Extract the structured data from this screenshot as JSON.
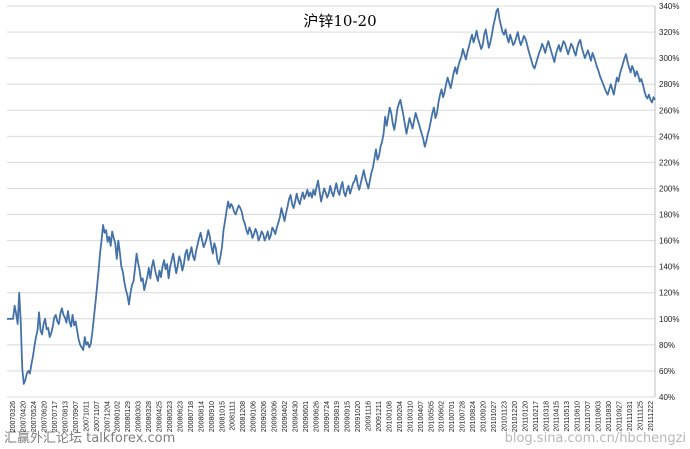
{
  "chart_data": {
    "type": "line",
    "title": "沪锌10-20",
    "xlabel": "",
    "ylabel": "",
    "yticks": [
      "40%",
      "60%",
      "80%",
      "100%",
      "120%",
      "140%",
      "160%",
      "180%",
      "200%",
      "220%",
      "240%",
      "260%",
      "280%",
      "300%",
      "320%",
      "340%"
    ],
    "ylim": [
      40,
      340
    ],
    "y_unit": "%",
    "grid": "horizontal",
    "legend": "none",
    "line_color": "#4472A8",
    "x_tick_labels": [
      "20070326",
      "20070420",
      "20070524",
      "20070620",
      "20070717",
      "20070813",
      "20070907",
      "20071011",
      "20071107",
      "20071204",
      "20080102",
      "20080129",
      "20080303",
      "20080328",
      "20080425",
      "20080523",
      "20080623",
      "20080718",
      "20080814",
      "20080910",
      "20081015",
      "20081111",
      "20081208",
      "20090106",
      "20090206",
      "20090306",
      "20090402",
      "20090430",
      "20090601",
      "20090626",
      "20090724",
      "20090819",
      "20090915",
      "20091020",
      "20091116",
      "20091211",
      "20100108",
      "20100204",
      "20100310",
      "20100407",
      "20100505",
      "20100602",
      "20100701",
      "20100728",
      "20100824",
      "20100920",
      "20101027",
      "20101123",
      "20101220",
      "20110120",
      "20110217",
      "20110318",
      "20110415",
      "20110513",
      "20110610",
      "20110707",
      "20110803",
      "20110830",
      "20110927",
      "20111031",
      "20111125",
      "20111222"
    ],
    "series": [
      {
        "values": [
          100,
          100,
          100,
          100,
          100,
          110,
          104,
          96,
          120,
          98,
          62,
          50,
          53,
          58,
          60,
          58,
          65,
          71,
          79,
          86,
          91,
          105,
          91,
          88,
          96,
          100,
          92,
          93,
          86,
          89,
          94,
          101,
          103,
          98,
          96,
          104,
          108,
          103,
          101,
          97,
          106,
          98,
          94,
          103,
          95,
          98,
          91,
          84,
          80,
          78,
          76,
          86,
          80,
          82,
          78,
          81,
          90,
          101,
          112,
          124,
          136,
          150,
          160,
          172,
          166,
          168,
          159,
          163,
          156,
          167,
          162,
          158,
          146,
          160,
          151,
          140,
          136,
          128,
          122,
          118,
          111,
          120,
          126,
          129,
          139,
          150,
          143,
          137,
          129,
          131,
          122,
          127,
          132,
          139,
          131,
          140,
          145,
          138,
          133,
          129,
          137,
          132,
          140,
          145,
          138,
          142,
          131,
          140,
          145,
          150,
          142,
          135,
          141,
          148,
          144,
          137,
          142,
          150,
          153,
          145,
          150,
          155,
          148,
          145,
          152,
          157,
          162,
          166,
          160,
          155,
          158,
          162,
          168,
          163,
          156,
          150,
          158,
          154,
          145,
          142,
          148,
          155,
          168,
          175,
          183,
          190,
          185,
          188,
          186,
          182,
          180,
          184,
          187,
          185,
          182,
          176,
          173,
          168,
          165,
          170,
          167,
          162,
          165,
          169,
          166,
          160,
          163,
          167,
          165,
          160,
          163,
          167,
          161,
          164,
          170,
          168,
          165,
          170,
          174,
          178,
          185,
          180,
          175,
          181,
          186,
          192,
          195,
          188,
          185,
          190,
          196,
          191,
          188,
          193,
          197,
          192,
          195,
          199,
          194,
          197,
          193,
          199,
          195,
          201,
          206,
          198,
          190,
          195,
          200,
          197,
          193,
          196,
          202,
          197,
          194,
          199,
          204,
          198,
          195,
          201,
          205,
          197,
          194,
          199,
          202,
          196,
          200,
          204,
          206,
          210,
          203,
          199,
          204,
          209,
          214,
          208,
          204,
          200,
          206,
          212,
          216,
          223,
          230,
          222,
          225,
          232,
          236,
          242,
          255,
          248,
          255,
          262,
          258,
          250,
          245,
          252,
          261,
          265,
          268,
          262,
          256,
          249,
          242,
          248,
          254,
          250,
          246,
          252,
          258,
          254,
          250,
          246,
          242,
          238,
          232,
          236,
          242,
          246,
          252,
          258,
          262,
          254,
          258,
          266,
          272,
          276,
          270,
          274,
          280,
          285,
          281,
          277,
          283,
          289,
          293,
          288,
          294,
          298,
          301,
          307,
          303,
          299,
          305,
          309,
          314,
          318,
          312,
          316,
          321,
          315,
          311,
          307,
          310,
          318,
          322,
          315,
          308,
          312,
          318,
          325,
          330,
          336,
          338,
          330,
          325,
          320,
          318,
          322,
          316,
          312,
          318,
          314,
          310,
          312,
          316,
          320,
          314,
          310,
          313,
          317,
          315,
          311,
          306,
          302,
          298,
          294,
          292,
          296,
          300,
          304,
          307,
          311,
          308,
          304,
          309,
          313,
          309,
          305,
          301,
          297,
          303,
          307,
          310,
          305,
          309,
          313,
          311,
          307,
          303,
          307,
          311,
          309,
          305,
          302,
          308,
          312,
          314,
          308,
          304,
          300,
          303,
          306,
          302,
          298,
          304,
          301,
          297,
          293,
          290,
          286,
          283,
          280,
          277,
          274,
          272,
          276,
          280,
          276,
          272,
          279,
          285,
          282,
          288,
          292,
          296,
          300,
          303,
          297,
          293,
          289,
          294,
          291,
          286,
          290,
          287,
          282,
          284,
          280,
          275,
          271,
          269,
          272,
          268,
          266,
          270,
          268
        ]
      }
    ]
  },
  "watermarks": {
    "left": "汇赢外汇论坛 talkforex.com",
    "right": "blog.sina.com.cn/hbchengzi"
  }
}
